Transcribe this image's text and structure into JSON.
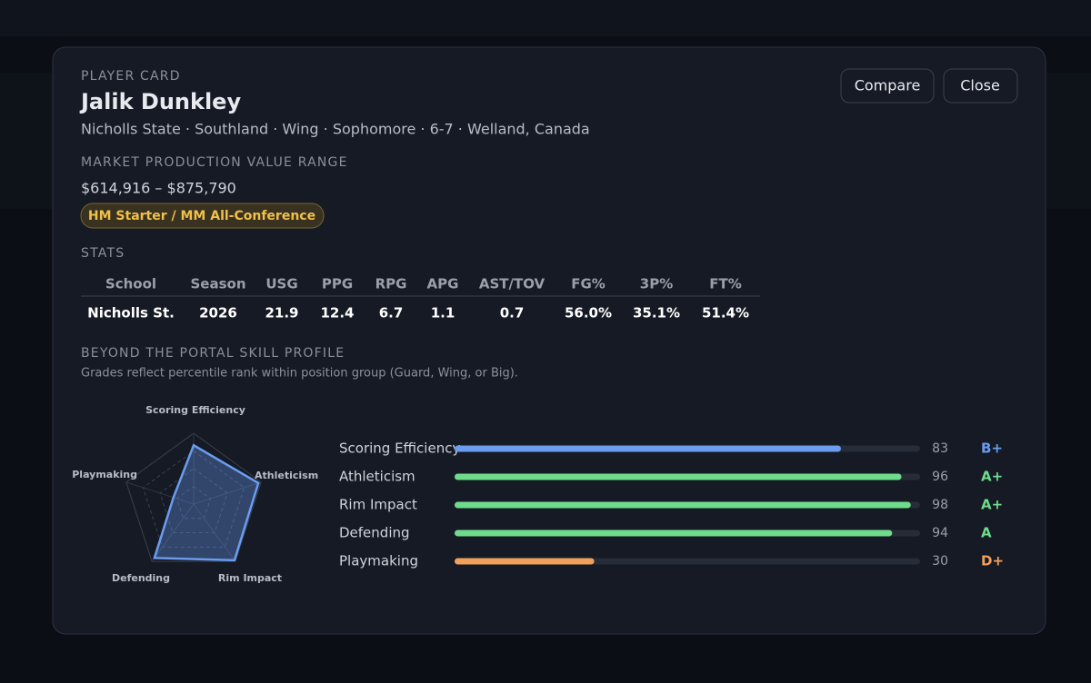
{
  "header": {
    "kicker": "PLAYER CARD",
    "name": "Jalik Dunkley",
    "subtitle": "Nicholls State · Southland · Wing · Sophomore · 6-7 · Welland, Canada"
  },
  "buttons": [
    "Compare",
    "Close"
  ],
  "market": {
    "title": "MARKET PRODUCTION VALUE RANGE",
    "range": "$614,916 – $875,790",
    "badge": "HM Starter / MM All-Conference"
  },
  "stats": {
    "title": "STATS",
    "headers": [
      "School",
      "Season",
      "USG",
      "PPG",
      "RPG",
      "APG",
      "AST/TOV",
      "FG%",
      "3P%",
      "FT%"
    ],
    "rows": [
      [
        "Nicholls St.",
        "2026",
        "21.9",
        "12.4",
        "6.7",
        "1.1",
        "0.7",
        "56.0%",
        "35.1%",
        "51.4%"
      ]
    ]
  },
  "skill_profile": {
    "title": "BEYOND THE PORTAL SKILL PROFILE",
    "note": "Grades reflect percentile rank within position group (Guard, Wing, or Big).",
    "lim": [
      0,
      100
    ],
    "skills": [
      {
        "name": "Scoring Efficiency",
        "value": 83,
        "grade": "B+",
        "color": "#6b9cf0"
      },
      {
        "name": "Athleticism",
        "value": 96,
        "grade": "A+",
        "color": "#6fdc8c"
      },
      {
        "name": "Rim Impact",
        "value": 98,
        "grade": "A+",
        "color": "#6fdc8c"
      },
      {
        "name": "Defending",
        "value": 94,
        "grade": "A",
        "color": "#6fdc8c"
      },
      {
        "name": "Playmaking",
        "value": 30,
        "grade": "D+",
        "color": "#f0a05a"
      }
    ]
  }
}
